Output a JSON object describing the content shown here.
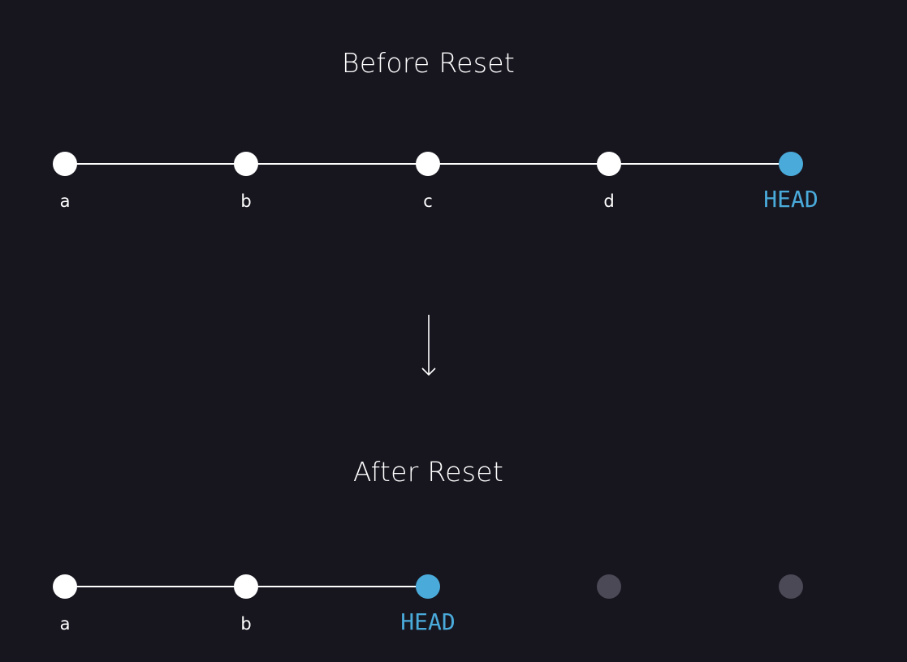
{
  "before": {
    "title": "Before Reset",
    "commits": [
      {
        "label": "a",
        "state": "committed"
      },
      {
        "label": "b",
        "state": "committed"
      },
      {
        "label": "c",
        "state": "committed"
      },
      {
        "label": "d",
        "state": "committed"
      },
      {
        "label": "HEAD",
        "state": "head"
      }
    ]
  },
  "after": {
    "title": "After Reset",
    "commits": [
      {
        "label": "a",
        "state": "committed"
      },
      {
        "label": "b",
        "state": "committed"
      },
      {
        "label": "HEAD",
        "state": "head"
      },
      {
        "label": "",
        "state": "discarded"
      },
      {
        "label": "",
        "state": "discarded"
      }
    ]
  },
  "colors": {
    "background": "#17161f",
    "commit": "#ffffff",
    "head": "#4aabdb",
    "discarded": "#4a4955"
  }
}
